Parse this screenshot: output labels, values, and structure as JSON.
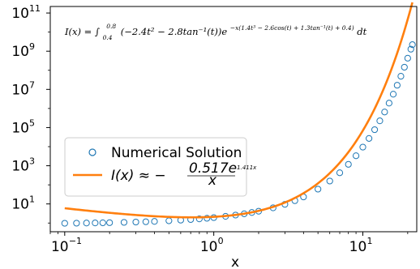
{
  "chart_data": {
    "type": "scatter",
    "xscale": "log",
    "yscale": "log",
    "xlim": [
      0.08,
      23
    ],
    "ylim": [
      0.35,
      220000000000.0
    ],
    "xlabel": "x",
    "ylabel": "",
    "x_ticks": [
      {
        "value": 0.1,
        "base": "10",
        "exp": "−1"
      },
      {
        "value": 1,
        "base": "10",
        "exp": "0"
      },
      {
        "value": 10,
        "base": "10",
        "exp": "1"
      }
    ],
    "y_ticks": [
      {
        "value": 10,
        "base": "10",
        "exp": "1"
      },
      {
        "value": 1000,
        "base": "10",
        "exp": "3"
      },
      {
        "value": 100000,
        "base": "10",
        "exp": "5"
      },
      {
        "value": 10000000,
        "base": "10",
        "exp": "7"
      },
      {
        "value": 1000000000,
        "base": "10",
        "exp": "9"
      },
      {
        "value": 100000000000,
        "base": "10",
        "exp": "11"
      }
    ],
    "annotation": {
      "lhs": "I(x) = ∫",
      "lower": "0.4",
      "upper": "0.8",
      "integrand": "(−2.4t² − 2.8tan⁻¹(t))e",
      "exponent": "−x(1.4t³ − 2.6cos(t) + 1.3tan⁻¹(t) + 0.4)",
      "dt": " dt"
    },
    "legend_position": "lower-left",
    "series": [
      {
        "name": "Numerical Solution",
        "kind": "markers",
        "color": "#1f77b4",
        "points": [
          [
            0.1,
            0.97
          ],
          [
            0.12,
            0.982
          ],
          [
            0.14,
            0.998
          ],
          [
            0.16,
            1.012
          ],
          [
            0.18,
            1.028
          ],
          [
            0.2,
            1.043
          ],
          [
            0.25,
            1.083
          ],
          [
            0.3,
            1.124
          ],
          [
            0.35,
            1.168
          ],
          [
            0.4,
            1.213
          ],
          [
            0.5,
            1.31
          ],
          [
            0.6,
            1.414
          ],
          [
            0.7,
            1.526
          ],
          [
            0.8,
            1.648
          ],
          [
            0.9,
            1.78
          ],
          [
            1.0,
            1.92
          ],
          [
            1.2,
            2.24
          ],
          [
            1.4,
            2.61
          ],
          [
            1.6,
            3.05
          ],
          [
            1.8,
            3.56
          ],
          [
            2.0,
            4.16
          ],
          [
            2.5,
            6.25
          ],
          [
            3.0,
            9.55
          ],
          [
            3.5,
            14.8
          ],
          [
            4.0,
            23.3
          ],
          [
            5.0,
            59.5
          ],
          [
            6.0,
            158
          ],
          [
            7.0,
            429
          ],
          [
            8.0,
            1190
          ],
          [
            9.0,
            3340
          ],
          [
            10.0,
            9460
          ],
          [
            11.0,
            27000
          ],
          [
            12.0,
            77600
          ],
          [
            13.0,
            225000
          ],
          [
            14.0,
            653000
          ],
          [
            15.0,
            1910000.0
          ],
          [
            16.0,
            5600000.0
          ],
          [
            17.0,
            16500000.0
          ],
          [
            18.0,
            48800000.0
          ],
          [
            19.0,
            145000000.0
          ],
          [
            20.0,
            430000000.0
          ],
          [
            21.0,
            1280000000.0
          ],
          [
            21.5,
            2200000000.0
          ]
        ]
      },
      {
        "name": "I(x) ≈ −0.517e^(1.411x)/x",
        "legend_lhs": "I(x) ≈ −",
        "legend_num": "0.517e",
        "legend_num_exp": "1.411x",
        "legend_den": "x",
        "kind": "line",
        "color": "#ff7f0e",
        "coefficient": 0.517,
        "rate": 1.411,
        "x_range": [
          0.1,
          21.5
        ]
      }
    ]
  }
}
